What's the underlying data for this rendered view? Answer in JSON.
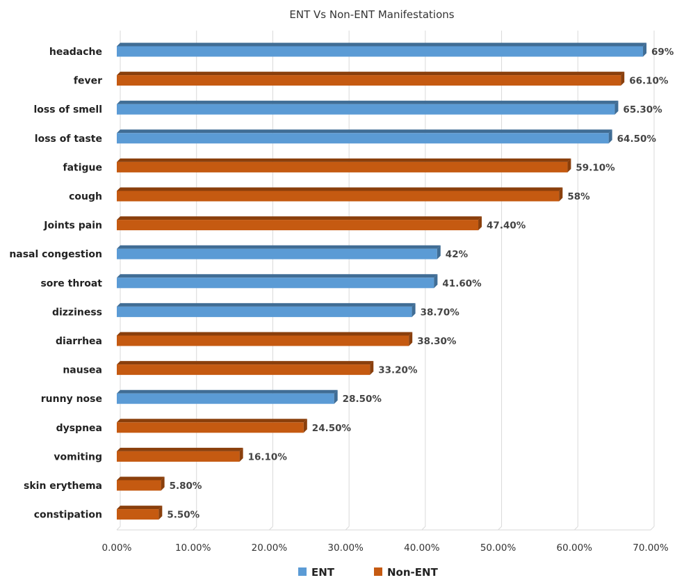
{
  "chart_data": {
    "type": "bar",
    "orientation": "horizontal",
    "title": "ENT Vs Non-ENT Manifestations",
    "xlabel": "",
    "ylabel": "",
    "xlim": [
      0,
      70
    ],
    "x_ticks": [
      "0.00%",
      "10.00%",
      "20.00%",
      "30.00%",
      "40.00%",
      "50.00%",
      "60.00%",
      "70.00%"
    ],
    "grid": true,
    "legend_position": "bottom",
    "legend": [
      {
        "name": "ENT",
        "color": "#5b9bd5"
      },
      {
        "name": "Non-ENT",
        "color": "#c55a11"
      }
    ],
    "categories": [
      "headache",
      "fever",
      "loss of smell",
      "loss of taste",
      "fatigue",
      "cough",
      "Joints pain",
      "nasal congestion",
      "sore throat",
      "dizziness",
      "diarrhea",
      "nausea",
      "runny nose",
      "dyspnea",
      "vomiting",
      "skin erythema",
      "constipation"
    ],
    "values": [
      69,
      66.1,
      65.3,
      64.5,
      59.1,
      58,
      47.4,
      42,
      41.6,
      38.7,
      38.3,
      33.2,
      28.5,
      24.5,
      16.1,
      5.8,
      5.5
    ],
    "value_labels": [
      "69%",
      "66.10%",
      "65.30%",
      "64.50%",
      "59.10%",
      "58%",
      "47.40%",
      "42%",
      "41.60%",
      "38.70%",
      "38.30%",
      "33.20%",
      "28.50%",
      "24.50%",
      "16.10%",
      "5.80%",
      "5.50%"
    ],
    "groups": [
      "ENT",
      "Non-ENT",
      "ENT",
      "ENT",
      "Non-ENT",
      "Non-ENT",
      "Non-ENT",
      "ENT",
      "ENT",
      "ENT",
      "Non-ENT",
      "Non-ENT",
      "ENT",
      "Non-ENT",
      "Non-ENT",
      "Non-ENT",
      "Non-ENT"
    ]
  }
}
